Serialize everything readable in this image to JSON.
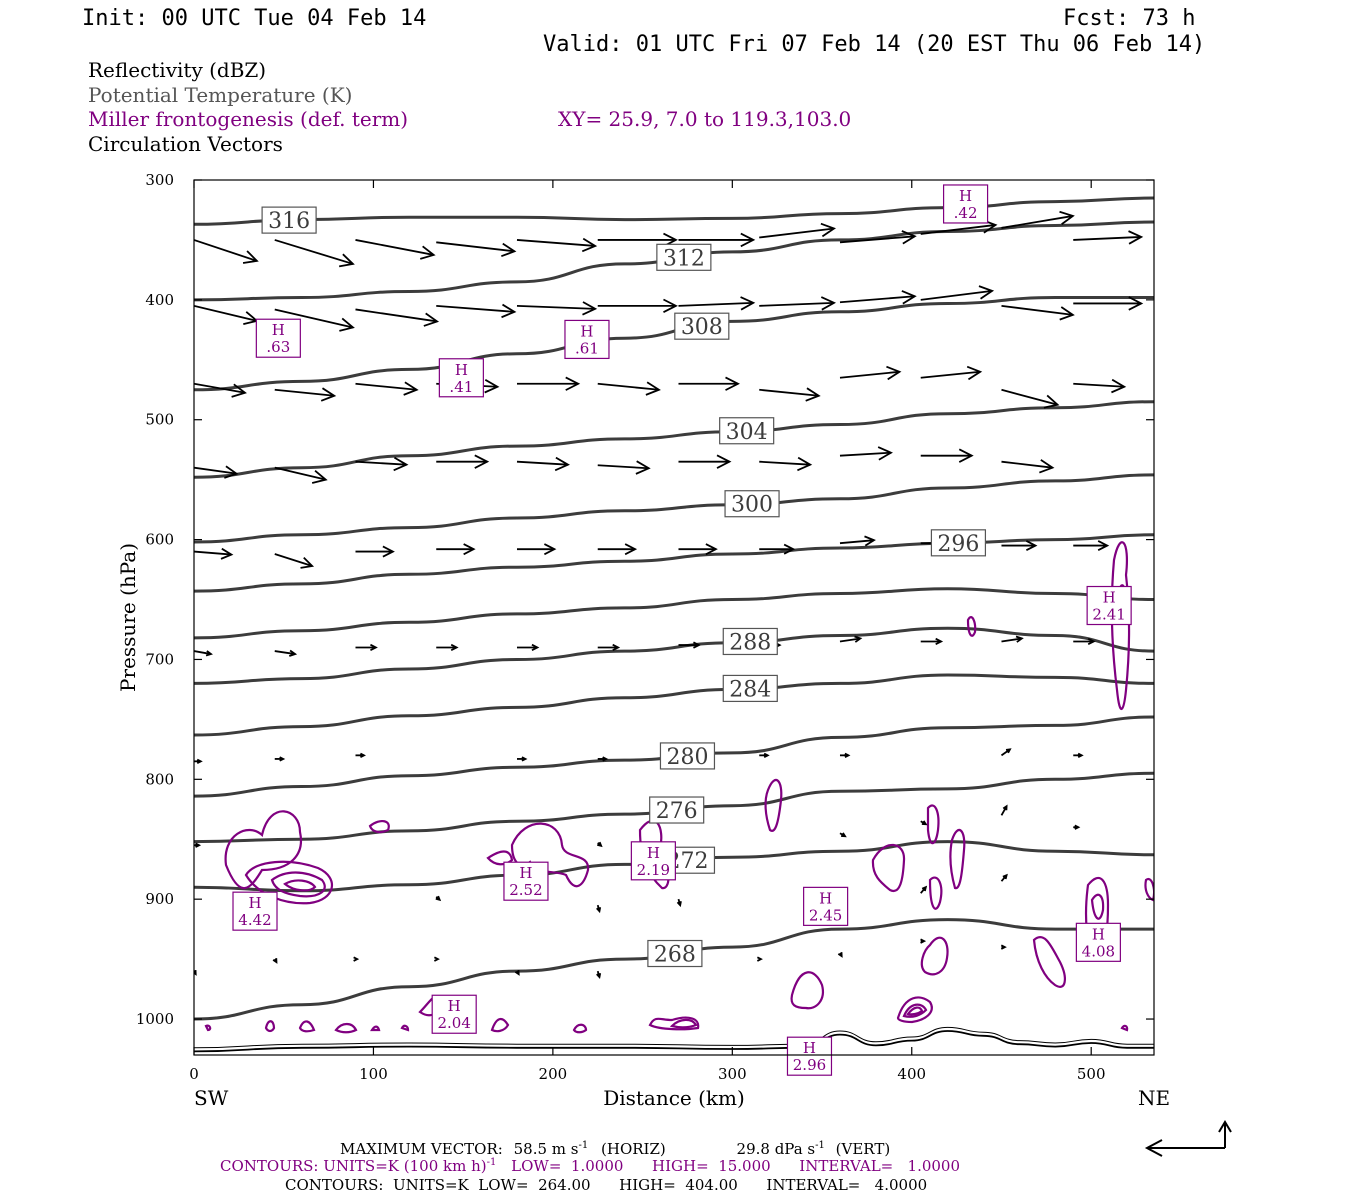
{
  "header": {
    "init": "Init: 00 UTC Tue 04 Feb 14",
    "fcst": "Fcst:   73 h",
    "valid": "Valid: 01 UTC Fri 07 Feb 14 (20 EST Thu 06 Feb 14)"
  },
  "legend": {
    "reflectivity": "Reflectivity (dBZ)",
    "theta": "Potential Temperature (K)",
    "miller": "Miller frontogenesis (def. term)",
    "xy": "XY=  25.9,  7.0 to 119.3,103.0",
    "vectors": "Circulation Vectors"
  },
  "colors": {
    "theta": "#3c3c3c",
    "fronto": "#800080",
    "vector": "#000000",
    "terrain": "#000000"
  },
  "chart_data": {
    "type": "line",
    "xlabel": "Distance (km)",
    "ylabel": "Pressure (hPa)",
    "xlim": [
      0,
      535
    ],
    "ylim": [
      1030,
      300
    ],
    "x_ticks": [
      0,
      100,
      200,
      300,
      400,
      500
    ],
    "x_tick_labels": [
      "0",
      "100",
      "200",
      "300",
      "400",
      "500"
    ],
    "y_ticks": [
      300,
      400,
      500,
      600,
      700,
      800,
      900,
      1000
    ],
    "y_tick_labels": [
      "300",
      "400",
      "500",
      "600",
      "700",
      "800",
      "900",
      "1000"
    ],
    "endpoint_left": "SW",
    "endpoint_right": "NE",
    "theta_contours": [
      {
        "level": 316,
        "label": "316",
        "x": [
          0,
          60,
          120,
          180,
          240,
          300,
          360,
          420,
          480,
          535
        ],
        "p": [
          337,
          333,
          331,
          331,
          333,
          332,
          328,
          323,
          318,
          315
        ],
        "label_x": 53
      },
      {
        "level": 312,
        "label": "312",
        "x": [
          0,
          60,
          120,
          180,
          240,
          300,
          360,
          420,
          480,
          535
        ],
        "p": [
          400,
          398,
          393,
          385,
          370,
          360,
          350,
          343,
          338,
          335
        ],
        "label_x": 273
      },
      {
        "level": 308,
        "label": "308",
        "x": [
          0,
          60,
          120,
          180,
          240,
          300,
          360,
          420,
          480,
          535
        ],
        "p": [
          475,
          468,
          458,
          445,
          432,
          418,
          410,
          403,
          398,
          398
        ],
        "label_x": 283
      },
      {
        "level": 304,
        "label": "304",
        "x": [
          0,
          60,
          120,
          180,
          240,
          300,
          360,
          420,
          480,
          535
        ],
        "p": [
          548,
          540,
          530,
          522,
          516,
          510,
          504,
          495,
          490,
          485
        ],
        "label_x": 308
      },
      {
        "level": 300,
        "label": "300",
        "x": [
          0,
          60,
          120,
          180,
          240,
          300,
          360,
          420,
          480,
          535
        ],
        "p": [
          602,
          596,
          590,
          582,
          576,
          571,
          566,
          557,
          551,
          546
        ],
        "label_x": 311
      },
      {
        "level": 296,
        "label": "296",
        "x": [
          0,
          60,
          120,
          180,
          240,
          300,
          360,
          420,
          480,
          535
        ],
        "p": [
          643,
          637,
          629,
          623,
          618,
          612,
          607,
          603,
          600,
          596
        ],
        "label_x": 426
      },
      {
        "level": 292,
        "label": "",
        "x": [
          0,
          60,
          120,
          180,
          240,
          300,
          360,
          420,
          480,
          535
        ],
        "p": [
          682,
          676,
          669,
          662,
          657,
          650,
          645,
          641,
          645,
          650
        ],
        "label_x": 0
      },
      {
        "level": 288,
        "label": "288",
        "x": [
          0,
          60,
          120,
          180,
          240,
          300,
          360,
          420,
          480,
          535
        ],
        "p": [
          720,
          716,
          708,
          700,
          693,
          686,
          680,
          674,
          680,
          693
        ],
        "label_x": 310
      },
      {
        "level": 284,
        "label": "284",
        "x": [
          0,
          60,
          120,
          180,
          240,
          300,
          360,
          420,
          480,
          535
        ],
        "p": [
          763,
          756,
          747,
          740,
          732,
          725,
          720,
          713,
          715,
          720
        ],
        "label_x": 310
      },
      {
        "level": 280,
        "label": "280",
        "x": [
          0,
          60,
          120,
          180,
          240,
          300,
          360,
          420,
          480,
          535
        ],
        "p": [
          814,
          806,
          797,
          790,
          784,
          778,
          765,
          757,
          755,
          748
        ],
        "label_x": 275
      },
      {
        "level": 276,
        "label": "276",
        "x": [
          0,
          60,
          120,
          180,
          240,
          300,
          360,
          420,
          480,
          535
        ],
        "p": [
          852,
          850,
          843,
          835,
          829,
          822,
          810,
          808,
          800,
          795
        ],
        "label_x": 269
      },
      {
        "level": 272,
        "label": "272",
        "x": [
          0,
          60,
          120,
          180,
          240,
          300,
          360,
          420,
          480,
          535
        ],
        "p": [
          890,
          893,
          888,
          880,
          871,
          865,
          860,
          852,
          860,
          863
        ],
        "label_x": 275
      },
      {
        "level": 268,
        "label": "268",
        "x": [
          0,
          60,
          120,
          180,
          240,
          300,
          360,
          420,
          480,
          535
        ],
        "p": [
          1000,
          988,
          973,
          960,
          950,
          940,
          925,
          917,
          925,
          925
        ],
        "label_x": 268
      }
    ],
    "terrain_p": {
      "x": [
        0,
        60,
        120,
        180,
        240,
        300,
        340,
        360,
        380,
        400,
        420,
        440,
        460,
        480,
        500,
        520,
        535
      ],
      "p": [
        1027,
        1024,
        1023,
        1024,
        1024,
        1025,
        1024,
        1013,
        1022,
        1018,
        1010,
        1014,
        1021,
        1023,
        1020,
        1024,
        1024
      ]
    },
    "fronto_maxima": [
      {
        "label": "H",
        "value": ".42",
        "x": 430,
        "p": 320
      },
      {
        "label": "H",
        "value": ".63",
        "x": 47,
        "p": 432
      },
      {
        "label": "H",
        "value": ".61",
        "x": 219,
        "p": 433
      },
      {
        "label": "H",
        "value": ".41",
        "x": 149,
        "p": 465
      },
      {
        "label": "H",
        "value": "2.41",
        "x": 510,
        "p": 655
      },
      {
        "label": "H",
        "value": "2.19",
        "x": 256,
        "p": 868
      },
      {
        "label": "H",
        "value": "2.52",
        "x": 185,
        "p": 885
      },
      {
        "label": "H",
        "value": "2.45",
        "x": 352,
        "p": 906
      },
      {
        "label": "H",
        "value": "4.42",
        "x": 34,
        "p": 910
      },
      {
        "label": "H",
        "value": "4.08",
        "x": 504,
        "p": 936
      },
      {
        "label": "H",
        "value": "2.04",
        "x": 145,
        "p": 996
      },
      {
        "label": "H",
        "value": "2.96",
        "x": 343,
        "p": 1031
      }
    ],
    "vectors": [
      {
        "x": 0,
        "p": 350,
        "u": 37,
        "w": -7
      },
      {
        "x": 45,
        "p": 350,
        "u": 46,
        "w": -8
      },
      {
        "x": 90,
        "p": 350,
        "u": 46,
        "w": -5
      },
      {
        "x": 135,
        "p": 352,
        "u": 46,
        "w": -3
      },
      {
        "x": 180,
        "p": 350,
        "u": 46,
        "w": -2
      },
      {
        "x": 225,
        "p": 350,
        "u": 46,
        "w": 0
      },
      {
        "x": 270,
        "p": 350,
        "u": 44,
        "w": 0
      },
      {
        "x": 315,
        "p": 348,
        "u": 44,
        "w": 3
      },
      {
        "x": 360,
        "p": 352,
        "u": 44,
        "w": 2
      },
      {
        "x": 405,
        "p": 345,
        "u": 44,
        "w": 3
      },
      {
        "x": 450,
        "p": 340,
        "u": 42,
        "w": 4
      },
      {
        "x": 490,
        "p": 350,
        "u": 40,
        "w": 1
      },
      {
        "x": 0,
        "p": 405,
        "u": 37,
        "w": -5
      },
      {
        "x": 45,
        "p": 408,
        "u": 46,
        "w": -6
      },
      {
        "x": 90,
        "p": 408,
        "u": 48,
        "w": -4
      },
      {
        "x": 135,
        "p": 405,
        "u": 46,
        "w": -2
      },
      {
        "x": 180,
        "p": 405,
        "u": 46,
        "w": -1
      },
      {
        "x": 225,
        "p": 405,
        "u": 46,
        "w": 0
      },
      {
        "x": 270,
        "p": 405,
        "u": 44,
        "w": 1
      },
      {
        "x": 315,
        "p": 405,
        "u": 44,
        "w": 1
      },
      {
        "x": 360,
        "p": 402,
        "u": 44,
        "w": 2
      },
      {
        "x": 405,
        "p": 400,
        "u": 42,
        "w": 3
      },
      {
        "x": 450,
        "p": 405,
        "u": 42,
        "w": -3
      },
      {
        "x": 490,
        "p": 403,
        "u": 40,
        "w": 0
      },
      {
        "x": 0,
        "p": 470,
        "u": 30,
        "w": -3
      },
      {
        "x": 45,
        "p": 475,
        "u": 35,
        "w": -2
      },
      {
        "x": 90,
        "p": 470,
        "u": 36,
        "w": -2
      },
      {
        "x": 135,
        "p": 470,
        "u": 36,
        "w": -1
      },
      {
        "x": 180,
        "p": 470,
        "u": 36,
        "w": 0
      },
      {
        "x": 225,
        "p": 470,
        "u": 36,
        "w": -2
      },
      {
        "x": 270,
        "p": 470,
        "u": 35,
        "w": 0
      },
      {
        "x": 315,
        "p": 475,
        "u": 35,
        "w": -2
      },
      {
        "x": 360,
        "p": 465,
        "u": 35,
        "w": 2
      },
      {
        "x": 405,
        "p": 465,
        "u": 35,
        "w": 2
      },
      {
        "x": 450,
        "p": 475,
        "u": 33,
        "w": -5
      },
      {
        "x": 490,
        "p": 470,
        "u": 30,
        "w": -1
      },
      {
        "x": 0,
        "p": 540,
        "u": 25,
        "w": -2
      },
      {
        "x": 45,
        "p": 540,
        "u": 30,
        "w": -4
      },
      {
        "x": 90,
        "p": 535,
        "u": 30,
        "w": -1
      },
      {
        "x": 135,
        "p": 535,
        "u": 30,
        "w": 0
      },
      {
        "x": 180,
        "p": 535,
        "u": 30,
        "w": -1
      },
      {
        "x": 225,
        "p": 538,
        "u": 30,
        "w": -1
      },
      {
        "x": 270,
        "p": 535,
        "u": 30,
        "w": 0
      },
      {
        "x": 315,
        "p": 535,
        "u": 30,
        "w": -1
      },
      {
        "x": 360,
        "p": 530,
        "u": 30,
        "w": 1
      },
      {
        "x": 405,
        "p": 530,
        "u": 30,
        "w": 0
      },
      {
        "x": 450,
        "p": 535,
        "u": 30,
        "w": -2
      },
      {
        "x": 0,
        "p": 610,
        "u": 22,
        "w": -1
      },
      {
        "x": 45,
        "p": 612,
        "u": 22,
        "w": -4
      },
      {
        "x": 90,
        "p": 610,
        "u": 22,
        "w": 0
      },
      {
        "x": 135,
        "p": 608,
        "u": 22,
        "w": 0
      },
      {
        "x": 180,
        "p": 608,
        "u": 22,
        "w": 0
      },
      {
        "x": 225,
        "p": 608,
        "u": 22,
        "w": 0
      },
      {
        "x": 270,
        "p": 608,
        "u": 22,
        "w": 0
      },
      {
        "x": 315,
        "p": 608,
        "u": 20,
        "w": 0
      },
      {
        "x": 360,
        "p": 603,
        "u": 20,
        "w": 1
      },
      {
        "x": 405,
        "p": 603,
        "u": 20,
        "w": 0
      },
      {
        "x": 450,
        "p": 605,
        "u": 20,
        "w": 0
      },
      {
        "x": 490,
        "p": 605,
        "u": 20,
        "w": 0
      },
      {
        "x": 0,
        "p": 693,
        "u": 10,
        "w": -1
      },
      {
        "x": 45,
        "p": 693,
        "u": 12,
        "w": -1
      },
      {
        "x": 90,
        "p": 690,
        "u": 12,
        "w": 0
      },
      {
        "x": 135,
        "p": 690,
        "u": 12,
        "w": 0
      },
      {
        "x": 180,
        "p": 690,
        "u": 12,
        "w": 0
      },
      {
        "x": 225,
        "p": 690,
        "u": 12,
        "w": 0
      },
      {
        "x": 270,
        "p": 688,
        "u": 12,
        "w": 0
      },
      {
        "x": 315,
        "p": 688,
        "u": 12,
        "w": 0
      },
      {
        "x": 360,
        "p": 685,
        "u": 12,
        "w": 1
      },
      {
        "x": 405,
        "p": 685,
        "u": 12,
        "w": 0
      },
      {
        "x": 450,
        "p": 685,
        "u": 12,
        "w": 1
      },
      {
        "x": 490,
        "p": 685,
        "u": 12,
        "w": 0
      },
      {
        "x": 0,
        "p": 785,
        "u": 4,
        "w": 0
      },
      {
        "x": 45,
        "p": 783,
        "u": 5,
        "w": 0
      },
      {
        "x": 90,
        "p": 780,
        "u": 5,
        "w": 0
      },
      {
        "x": 180,
        "p": 783,
        "u": 5,
        "w": 0
      },
      {
        "x": 225,
        "p": 783,
        "u": 5,
        "w": 0
      },
      {
        "x": 315,
        "p": 780,
        "u": 5,
        "w": 0
      },
      {
        "x": 360,
        "p": 780,
        "u": 5,
        "w": 0
      },
      {
        "x": 450,
        "p": 780,
        "u": 5,
        "w": 2
      },
      {
        "x": 490,
        "p": 780,
        "u": 5,
        "w": 0
      },
      {
        "x": 0,
        "p": 855,
        "u": 3,
        "w": 0
      },
      {
        "x": 225,
        "p": 853,
        "u": 2,
        "w": -1
      },
      {
        "x": 360,
        "p": 845,
        "u": 3,
        "w": -1
      },
      {
        "x": 405,
        "p": 835,
        "u": 3,
        "w": -1
      },
      {
        "x": 450,
        "p": 830,
        "u": 3,
        "w": 3
      },
      {
        "x": 490,
        "p": 840,
        "u": 3,
        "w": 0
      },
      {
        "x": 135,
        "p": 898,
        "u": 2,
        "w": -1
      },
      {
        "x": 225,
        "p": 905,
        "u": 1,
        "w": -2
      },
      {
        "x": 270,
        "p": 900,
        "u": 1,
        "w": -2
      },
      {
        "x": 405,
        "p": 895,
        "u": 3,
        "w": 2
      },
      {
        "x": 450,
        "p": 885,
        "u": 3,
        "w": 2
      },
      {
        "x": 0,
        "p": 960,
        "u": 1,
        "w": -1
      },
      {
        "x": 45,
        "p": 950,
        "u": 1,
        "w": -1
      },
      {
        "x": 90,
        "p": 950,
        "u": 1,
        "w": 0
      },
      {
        "x": 135,
        "p": 950,
        "u": 1,
        "w": 0
      },
      {
        "x": 180,
        "p": 960,
        "u": 1,
        "w": -1
      },
      {
        "x": 225,
        "p": 960,
        "u": 1,
        "w": -2
      },
      {
        "x": 315,
        "p": 950,
        "u": 1,
        "w": 0
      },
      {
        "x": 360,
        "p": 945,
        "u": 1,
        "w": -1
      },
      {
        "x": 405,
        "p": 935,
        "u": 2,
        "w": 0
      },
      {
        "x": 450,
        "p": 940,
        "u": 2,
        "w": 0
      }
    ]
  },
  "footer": {
    "max_vector_label": "MAXIMUM VECTOR:",
    "max_vector_horiz": "58.5 m s",
    "max_vector_horiz_exp": "-1",
    "max_vector_horiz_tag": "(HORIZ)",
    "max_vector_vert": "29.8 dPa s",
    "max_vector_vert_exp": "-1",
    "max_vector_vert_tag": "(VERT)",
    "contours1_a": "CONTOURS:  UNITS=K (100 km h)",
    "contours1_exp": "-1",
    "contours1_b": "LOW=  1.0000      HIGH=  15.000      INTERVAL=   1.0000",
    "contours2": "CONTOURS:  UNITS=K  LOW=  264.00      HIGH=  404.00      INTERVAL=   4.0000"
  }
}
